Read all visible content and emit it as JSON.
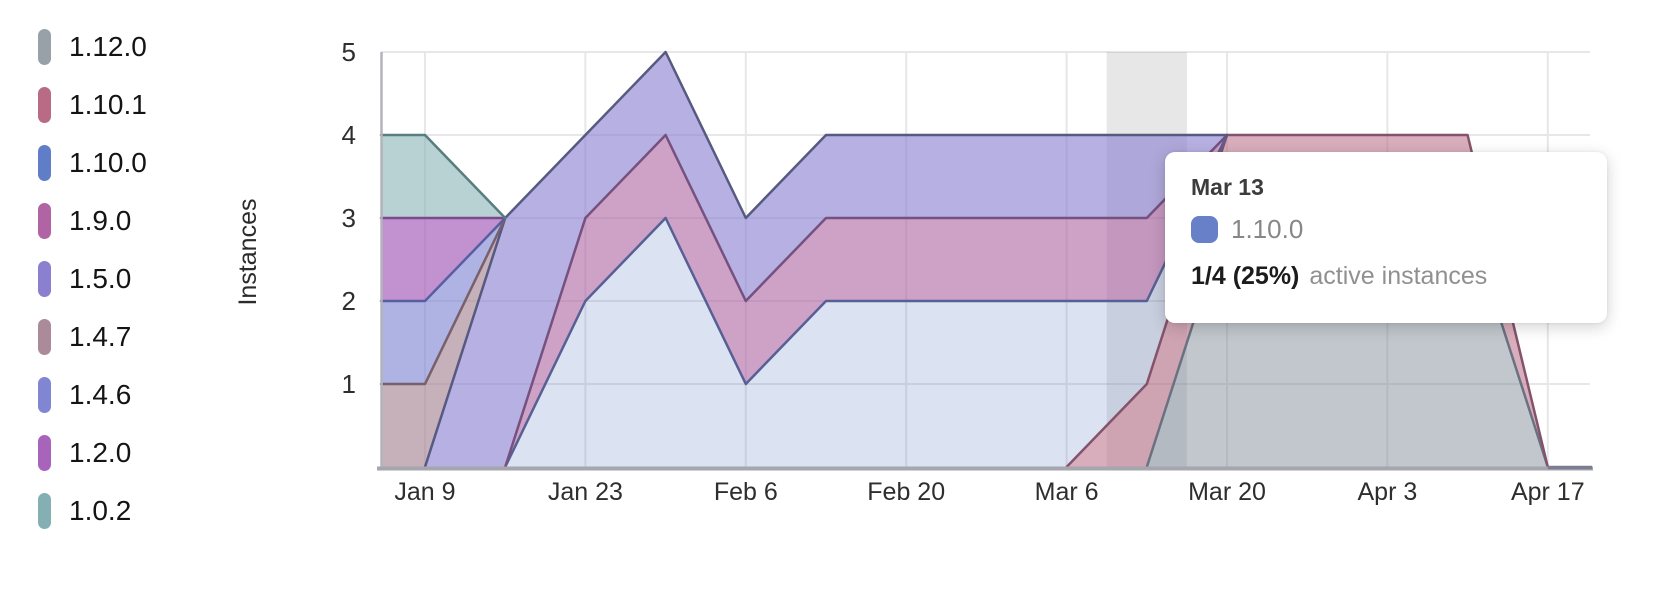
{
  "chart": {
    "y_axis_title": "Instances",
    "y_tick_labels": [
      "5",
      "4",
      "3",
      "2",
      "1"
    ],
    "x_tick_labels": [
      "Jan 9",
      "Jan 23",
      "Feb 6",
      "Feb 20",
      "Mar 6",
      "Mar 20",
      "Apr 3",
      "Apr 17"
    ]
  },
  "legend": {
    "items": [
      {
        "label": "1.12.0",
        "color": "#98a1a8"
      },
      {
        "label": "1.10.1",
        "color": "#b96b85"
      },
      {
        "label": "1.10.0",
        "color": "#5f7ec7"
      },
      {
        "label": "1.9.0",
        "color": "#b164a3"
      },
      {
        "label": "1.5.0",
        "color": "#8b7fd0"
      },
      {
        "label": "1.4.7",
        "color": "#ab8a99"
      },
      {
        "label": "1.4.6",
        "color": "#8186d2"
      },
      {
        "label": "1.2.0",
        "color": "#a863bb"
      },
      {
        "label": "1.0.2",
        "color": "#84b0b4"
      }
    ]
  },
  "tooltip": {
    "date": "Mar 13",
    "series": "1.10.0",
    "color": "#6880c8",
    "value": "1/4 (25%)",
    "suffix": "active instances"
  },
  "chart_data": {
    "type": "area",
    "stacked": true,
    "title": "",
    "xlabel": "",
    "ylabel": "Instances",
    "ylim": [
      0,
      5
    ],
    "grid": true,
    "legend_position": "left",
    "highlighted_x": "Mar 13",
    "stack_order": "bottom_to_top",
    "x": [
      "Jan 2",
      "Jan 9",
      "Jan 16",
      "Jan 23",
      "Jan 30",
      "Feb 6",
      "Feb 13",
      "Feb 20",
      "Feb 27",
      "Mar 6",
      "Mar 13",
      "Mar 20",
      "Mar 27",
      "Apr 3",
      "Apr 10",
      "Apr 17"
    ],
    "labeled_ticks": [
      "Jan 9",
      "Jan 23",
      "Feb 6",
      "Feb 20",
      "Mar 6",
      "Mar 20",
      "Apr 3",
      "Apr 17"
    ],
    "series": [
      {
        "name": "1.12.0",
        "color": "#98a1a8",
        "fill": "rgba(125,137,150,0.48)",
        "stroke": "#6a7180",
        "values": [
          0,
          0,
          0,
          0,
          0,
          0,
          0,
          0,
          0,
          0,
          0,
          3,
          3,
          3,
          3,
          0
        ]
      },
      {
        "name": "1.10.1",
        "color": "#b96b85",
        "fill": "rgba(185,107,133,0.55)",
        "stroke": "#84536b",
        "values": [
          0,
          0,
          0,
          0,
          0,
          0,
          0,
          0,
          0,
          0,
          1,
          1,
          1,
          1,
          1,
          0
        ]
      },
      {
        "name": "1.10.0",
        "color": "#5f7ec7",
        "fill": "rgba(99,128,196,0.23)",
        "stroke": "#566094",
        "values": [
          0,
          0,
          0,
          2,
          3,
          1,
          2,
          2,
          2,
          2,
          1,
          0,
          0,
          0,
          0,
          0
        ]
      },
      {
        "name": "1.9.0",
        "color": "#b164a3",
        "fill": "rgba(173,98,162,0.60)",
        "stroke": "#75517f",
        "values": [
          0,
          0,
          0,
          1,
          1,
          1,
          1,
          1,
          1,
          1,
          1,
          0,
          0,
          0,
          0,
          0
        ]
      },
      {
        "name": "1.5.0",
        "color": "#8b7fd0",
        "fill": "rgba(139,127,208,0.62)",
        "stroke": "#565a80",
        "values": [
          0,
          0,
          3,
          1,
          1,
          1,
          1,
          1,
          1,
          1,
          1,
          0,
          0,
          0,
          0,
          0
        ]
      },
      {
        "name": "1.4.7",
        "color": "#ab8a99",
        "fill": "rgba(171,138,153,0.68)",
        "stroke": "#77606c",
        "values": [
          1,
          1,
          0,
          0,
          0,
          0,
          0,
          0,
          0,
          0,
          0,
          0,
          0,
          0,
          0,
          0
        ]
      },
      {
        "name": "1.4.6",
        "color": "#8186d2",
        "fill": "rgba(129,134,210,0.63)",
        "stroke": "#585ea0",
        "values": [
          1,
          1,
          0,
          0,
          0,
          0,
          0,
          0,
          0,
          0,
          0,
          0,
          0,
          0,
          0,
          0
        ]
      },
      {
        "name": "1.2.0",
        "color": "#a863bb",
        "fill": "rgba(168,99,187,0.70)",
        "stroke": "#7a4b8c",
        "values": [
          1,
          1,
          0,
          0,
          0,
          0,
          0,
          0,
          0,
          0,
          0,
          0,
          0,
          0,
          0,
          0
        ]
      },
      {
        "name": "1.0.2",
        "color": "#84b0b4",
        "fill": "rgba(132,176,180,0.58)",
        "stroke": "#577d81",
        "values": [
          1,
          1,
          0,
          0,
          0,
          0,
          0,
          0,
          0,
          0,
          0,
          0,
          0,
          0,
          0,
          0
        ]
      }
    ]
  }
}
